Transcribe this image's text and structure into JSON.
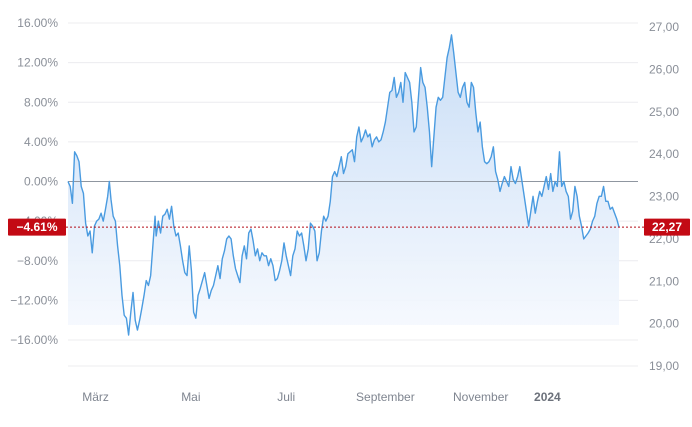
{
  "chart_data": {
    "type": "area",
    "title": "",
    "xlabel": "",
    "ylabel": "",
    "y_left_label_format": "percent",
    "y_left_ticks": [
      "16.00%",
      "12.00%",
      "8.00%",
      "4.00%",
      "0.00%",
      "-4.00%",
      "-8.00%",
      "-12.00%",
      "-16.00%"
    ],
    "y_left_range": [
      -18.5,
      17.5
    ],
    "y_right_ticks": [
      "27,00",
      "26,00",
      "25,00",
      "24,00",
      "23,00",
      "22,00",
      "21,00",
      "20,00",
      "19,00"
    ],
    "y_right_range": [
      19.0,
      27.0
    ],
    "x_tick_labels": [
      {
        "label": "März",
        "bold": false,
        "pos": 0.05
      },
      {
        "label": "Mai",
        "bold": false,
        "pos": 0.223
      },
      {
        "label": "Juli",
        "bold": false,
        "pos": 0.396
      },
      {
        "label": "September",
        "bold": false,
        "pos": 0.576
      },
      {
        "label": "November",
        "bold": false,
        "pos": 0.749
      },
      {
        "label": "2024",
        "bold": true,
        "pos": 0.87
      }
    ],
    "baseline_percent": 0.0,
    "current_percent_label": "−4.61%",
    "current_value_label": "22,27",
    "current_percent": -4.61,
    "colors": {
      "line": "#4a9be0",
      "fill_top": "#c6dcf6",
      "fill_bottom": "#f6f9fe",
      "badge": "#c30a14",
      "baseline": "#8f96a0",
      "current_line": "#b30c18",
      "grid": "#ececef"
    },
    "series": [
      {
        "unit": "percent",
        "points": [
          [
            0.0,
            0.0
          ],
          [
            0.004,
            -0.5
          ],
          [
            0.008,
            -2.2
          ],
          [
            0.012,
            3.0
          ],
          [
            0.016,
            2.6
          ],
          [
            0.02,
            2.0
          ],
          [
            0.024,
            -0.5
          ],
          [
            0.028,
            -1.2
          ],
          [
            0.032,
            -4.2
          ],
          [
            0.036,
            -5.5
          ],
          [
            0.04,
            -5.0
          ],
          [
            0.044,
            -7.2
          ],
          [
            0.048,
            -4.5
          ],
          [
            0.052,
            -4.0
          ],
          [
            0.056,
            -3.8
          ],
          [
            0.06,
            -3.2
          ],
          [
            0.064,
            -4.0
          ],
          [
            0.068,
            -2.8
          ],
          [
            0.072,
            -1.5
          ],
          [
            0.075,
            0.0
          ],
          [
            0.078,
            -1.8
          ],
          [
            0.082,
            -3.5
          ],
          [
            0.086,
            -4.0
          ],
          [
            0.09,
            -6.5
          ],
          [
            0.094,
            -8.5
          ],
          [
            0.098,
            -11.5
          ],
          [
            0.102,
            -13.5
          ],
          [
            0.106,
            -13.8
          ],
          [
            0.11,
            -15.5
          ],
          [
            0.114,
            -13.2
          ],
          [
            0.118,
            -11.2
          ],
          [
            0.122,
            -14.0
          ],
          [
            0.126,
            -15.0
          ],
          [
            0.13,
            -14.0
          ],
          [
            0.134,
            -12.8
          ],
          [
            0.138,
            -11.5
          ],
          [
            0.142,
            -10.0
          ],
          [
            0.146,
            -10.5
          ],
          [
            0.15,
            -9.5
          ],
          [
            0.154,
            -6.5
          ],
          [
            0.158,
            -3.5
          ],
          [
            0.16,
            -5.5
          ],
          [
            0.164,
            -4.0
          ],
          [
            0.168,
            -5.2
          ],
          [
            0.172,
            -3.5
          ],
          [
            0.176,
            -3.3
          ],
          [
            0.18,
            -2.8
          ],
          [
            0.184,
            -3.8
          ],
          [
            0.188,
            -2.5
          ],
          [
            0.192,
            -4.5
          ],
          [
            0.196,
            -5.5
          ],
          [
            0.2,
            -5.2
          ],
          [
            0.204,
            -6.5
          ],
          [
            0.208,
            -8.0
          ],
          [
            0.212,
            -9.2
          ],
          [
            0.216,
            -9.5
          ],
          [
            0.22,
            -6.5
          ],
          [
            0.224,
            -9.0
          ],
          [
            0.228,
            -13.2
          ],
          [
            0.232,
            -13.8
          ],
          [
            0.236,
            -11.5
          ],
          [
            0.24,
            -10.8
          ],
          [
            0.244,
            -10.0
          ],
          [
            0.248,
            -9.2
          ],
          [
            0.252,
            -10.5
          ],
          [
            0.256,
            -11.8
          ],
          [
            0.26,
            -11.0
          ],
          [
            0.264,
            -10.5
          ],
          [
            0.268,
            -9.5
          ],
          [
            0.272,
            -8.5
          ],
          [
            0.276,
            -9.8
          ],
          [
            0.28,
            -7.8
          ],
          [
            0.284,
            -7.0
          ],
          [
            0.288,
            -5.8
          ],
          [
            0.292,
            -5.5
          ],
          [
            0.296,
            -5.8
          ],
          [
            0.3,
            -7.5
          ],
          [
            0.304,
            -8.8
          ],
          [
            0.308,
            -9.5
          ],
          [
            0.312,
            -10.2
          ],
          [
            0.316,
            -7.5
          ],
          [
            0.32,
            -6.5
          ],
          [
            0.324,
            -7.8
          ],
          [
            0.328,
            -5.2
          ],
          [
            0.332,
            -4.8
          ],
          [
            0.336,
            -6.0
          ],
          [
            0.34,
            -7.5
          ],
          [
            0.344,
            -6.8
          ],
          [
            0.348,
            -8.0
          ],
          [
            0.352,
            -7.2
          ],
          [
            0.356,
            -7.5
          ],
          [
            0.36,
            -7.5
          ],
          [
            0.364,
            -8.5
          ],
          [
            0.368,
            -7.8
          ],
          [
            0.372,
            -8.5
          ],
          [
            0.376,
            -10.0
          ],
          [
            0.38,
            -9.8
          ],
          [
            0.384,
            -9.0
          ],
          [
            0.388,
            -8.0
          ],
          [
            0.392,
            -6.2
          ],
          [
            0.396,
            -7.5
          ],
          [
            0.4,
            -8.5
          ],
          [
            0.404,
            -9.5
          ],
          [
            0.408,
            -7.5
          ],
          [
            0.412,
            -6.8
          ],
          [
            0.416,
            -5.0
          ],
          [
            0.42,
            -5.5
          ],
          [
            0.424,
            -5.2
          ],
          [
            0.428,
            -6.5
          ],
          [
            0.432,
            -8.0
          ],
          [
            0.436,
            -6.8
          ],
          [
            0.44,
            -4.2
          ],
          [
            0.444,
            -4.5
          ],
          [
            0.448,
            -5.0
          ],
          [
            0.452,
            -8.0
          ],
          [
            0.456,
            -7.2
          ],
          [
            0.46,
            -5.0
          ],
          [
            0.464,
            -3.5
          ],
          [
            0.468,
            -4.0
          ],
          [
            0.472,
            -3.5
          ],
          [
            0.476,
            -2.0
          ],
          [
            0.48,
            0.5
          ],
          [
            0.484,
            1.0
          ],
          [
            0.488,
            0.5
          ],
          [
            0.492,
            1.5
          ],
          [
            0.496,
            2.5
          ],
          [
            0.5,
            0.8
          ],
          [
            0.504,
            1.5
          ],
          [
            0.508,
            2.8
          ],
          [
            0.512,
            3.0
          ],
          [
            0.516,
            3.2
          ],
          [
            0.52,
            2.0
          ],
          [
            0.524,
            4.5
          ],
          [
            0.528,
            5.5
          ],
          [
            0.532,
            4.0
          ],
          [
            0.536,
            4.5
          ],
          [
            0.54,
            5.2
          ],
          [
            0.544,
            4.5
          ],
          [
            0.548,
            4.8
          ],
          [
            0.552,
            3.5
          ],
          [
            0.556,
            4.2
          ],
          [
            0.56,
            4.5
          ],
          [
            0.564,
            4.0
          ],
          [
            0.568,
            4.2
          ],
          [
            0.572,
            5.0
          ],
          [
            0.576,
            6.0
          ],
          [
            0.58,
            7.5
          ],
          [
            0.584,
            9.0
          ],
          [
            0.588,
            9.2
          ],
          [
            0.592,
            10.5
          ],
          [
            0.596,
            8.5
          ],
          [
            0.6,
            9.0
          ],
          [
            0.604,
            10.0
          ],
          [
            0.608,
            8.0
          ],
          [
            0.612,
            11.0
          ],
          [
            0.616,
            10.5
          ],
          [
            0.62,
            10.0
          ],
          [
            0.624,
            8.0
          ],
          [
            0.628,
            5.0
          ],
          [
            0.632,
            5.5
          ],
          [
            0.636,
            8.5
          ],
          [
            0.64,
            11.5
          ],
          [
            0.644,
            10.0
          ],
          [
            0.648,
            9.5
          ],
          [
            0.652,
            7.5
          ],
          [
            0.656,
            5.0
          ],
          [
            0.66,
            1.5
          ],
          [
            0.664,
            4.5
          ],
          [
            0.668,
            7.5
          ],
          [
            0.672,
            8.5
          ],
          [
            0.676,
            8.2
          ],
          [
            0.68,
            8.5
          ],
          [
            0.684,
            10.5
          ],
          [
            0.688,
            12.5
          ],
          [
            0.692,
            13.5
          ],
          [
            0.696,
            14.8
          ],
          [
            0.7,
            13.0
          ],
          [
            0.704,
            11.0
          ],
          [
            0.708,
            9.0
          ],
          [
            0.712,
            8.5
          ],
          [
            0.716,
            9.5
          ],
          [
            0.72,
            10.0
          ],
          [
            0.724,
            8.0
          ],
          [
            0.728,
            7.5
          ],
          [
            0.732,
            10.0
          ],
          [
            0.736,
            9.5
          ],
          [
            0.74,
            7.0
          ],
          [
            0.744,
            5.0
          ],
          [
            0.748,
            6.0
          ],
          [
            0.752,
            3.5
          ],
          [
            0.756,
            2.0
          ],
          [
            0.76,
            1.8
          ],
          [
            0.764,
            2.0
          ],
          [
            0.768,
            2.5
          ],
          [
            0.772,
            3.5
          ],
          [
            0.776,
            1.0
          ],
          [
            0.78,
            0.2
          ],
          [
            0.784,
            -1.0
          ],
          [
            0.788,
            -0.2
          ],
          [
            0.792,
            0.5
          ],
          [
            0.796,
            0.0
          ],
          [
            0.8,
            -0.5
          ],
          [
            0.804,
            1.5
          ],
          [
            0.808,
            0.2
          ],
          [
            0.812,
            -0.2
          ],
          [
            0.816,
            0.5
          ],
          [
            0.82,
            1.5
          ],
          [
            0.824,
            0.0
          ],
          [
            0.828,
            -1.5
          ],
          [
            0.832,
            -3.0
          ],
          [
            0.836,
            -4.5
          ],
          [
            0.84,
            -3.0
          ],
          [
            0.844,
            -1.5
          ],
          [
            0.848,
            -3.2
          ],
          [
            0.852,
            -2.0
          ],
          [
            0.856,
            -1.0
          ],
          [
            0.86,
            -1.5
          ],
          [
            0.864,
            -0.5
          ],
          [
            0.868,
            0.5
          ],
          [
            0.872,
            -0.8
          ],
          [
            0.876,
            0.8
          ],
          [
            0.88,
            -1.0
          ],
          [
            0.884,
            0.0
          ],
          [
            0.888,
            -0.5
          ],
          [
            0.892,
            3.0
          ],
          [
            0.896,
            -0.5
          ],
          [
            0.9,
            0.0
          ],
          [
            0.904,
            -1.0
          ],
          [
            0.908,
            -1.5
          ],
          [
            0.912,
            -3.8
          ],
          [
            0.916,
            -3.0
          ],
          [
            0.92,
            -0.5
          ],
          [
            0.924,
            -1.5
          ],
          [
            0.928,
            -3.5
          ],
          [
            0.932,
            -4.5
          ],
          [
            0.936,
            -5.8
          ],
          [
            0.94,
            -5.5
          ],
          [
            0.944,
            -5.2
          ],
          [
            0.948,
            -4.8
          ],
          [
            0.952,
            -4.0
          ],
          [
            0.956,
            -3.5
          ],
          [
            0.96,
            -2.2
          ],
          [
            0.964,
            -1.5
          ],
          [
            0.968,
            -1.5
          ],
          [
            0.972,
            -0.5
          ],
          [
            0.976,
            -2.0
          ],
          [
            0.98,
            -2.0
          ],
          [
            0.984,
            -2.8
          ],
          [
            0.988,
            -2.6
          ],
          [
            0.992,
            -3.2
          ],
          [
            0.996,
            -3.8
          ],
          [
            1.0,
            -4.61
          ]
        ]
      }
    ]
  }
}
